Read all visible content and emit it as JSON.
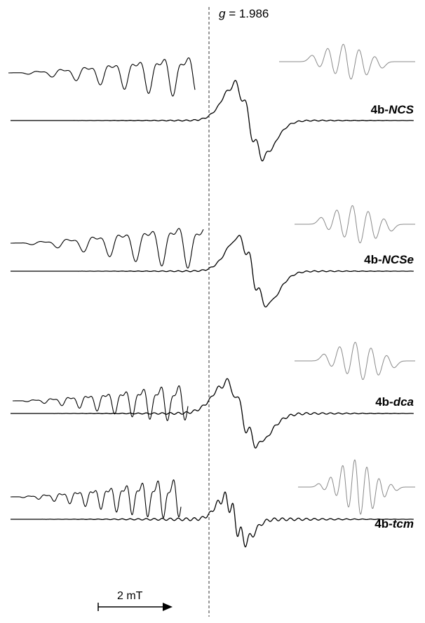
{
  "chart_data": {
    "type": "line",
    "title": "",
    "g_marker": {
      "prefix": "g",
      "value_text": " = 1.986",
      "value": 1.986
    },
    "scale_bar": {
      "label": "2 mT",
      "field_mT": 2
    },
    "series": [
      {
        "name_prefix": "4b-",
        "name_suffix": "NCS",
        "hyperfine_lines": 5,
        "has_inset_zoom": true,
        "has_simulation": true
      },
      {
        "name_prefix": "4b-",
        "name_suffix": "NCSe",
        "hyperfine_lines": 5,
        "has_inset_zoom": true,
        "has_simulation": true
      },
      {
        "name_prefix": "4b-",
        "name_suffix": "dca",
        "hyperfine_lines": 5,
        "has_inset_zoom": true,
        "has_simulation": true
      },
      {
        "name_prefix": "4b-",
        "name_suffix": "tcm",
        "hyperfine_lines": 7,
        "has_inset_zoom": true,
        "has_simulation": true
      }
    ],
    "colors": {
      "spectrum": "#000000",
      "simulation": "#8a8a8a",
      "marker": "#333333"
    }
  }
}
